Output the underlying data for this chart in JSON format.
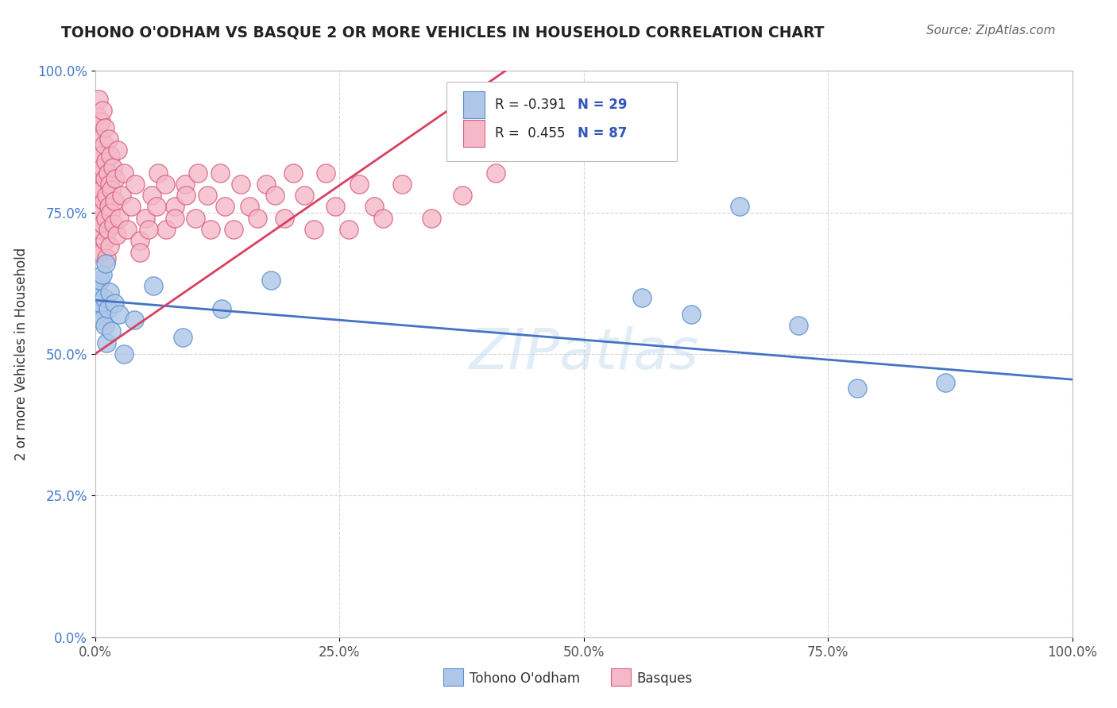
{
  "title": "TOHONO O'ODHAM VS BASQUE 2 OR MORE VEHICLES IN HOUSEHOLD CORRELATION CHART",
  "source": "Source: ZipAtlas.com",
  "ylabel": "2 or more Vehicles in Household",
  "xlabel": "",
  "xlim": [
    0.0,
    1.0
  ],
  "ylim": [
    0.0,
    1.0
  ],
  "xticks": [
    0.0,
    0.25,
    0.5,
    0.75,
    1.0
  ],
  "yticks": [
    0.0,
    0.25,
    0.5,
    0.75,
    1.0
  ],
  "xtick_labels": [
    "0.0%",
    "25.0%",
    "50.0%",
    "75.0%",
    "100.0%"
  ],
  "ytick_labels": [
    "0.0%",
    "25.0%",
    "50.0%",
    "75.0%",
    "100.0%"
  ],
  "blue_fill": "#AEC6E8",
  "blue_edge": "#5B8FCC",
  "pink_fill": "#F4B8C8",
  "pink_edge": "#D96080",
  "blue_line": "#4472C4",
  "pink_line": "#D94060",
  "legend_R1": "R = -0.391",
  "legend_N1": "N = 29",
  "legend_R2": "R =  0.455",
  "legend_N2": "N = 87",
  "label1": "Tohono O'odham",
  "label2": "Basques",
  "watermark": "ZIPatlas",
  "tohono_x": [
    0.001,
    0.002,
    0.003,
    0.004,
    0.005,
    0.006,
    0.007,
    0.008,
    0.009,
    0.01,
    0.011,
    0.012,
    0.013,
    0.015,
    0.017,
    0.02,
    0.025,
    0.03,
    0.04,
    0.06,
    0.09,
    0.13,
    0.18,
    0.56,
    0.61,
    0.66,
    0.72,
    0.78,
    0.87
  ],
  "tohono_y": [
    0.62,
    0.58,
    0.61,
    0.57,
    0.63,
    0.59,
    0.56,
    0.64,
    0.6,
    0.55,
    0.66,
    0.52,
    0.58,
    0.61,
    0.54,
    0.59,
    0.57,
    0.5,
    0.56,
    0.62,
    0.53,
    0.58,
    0.63,
    0.6,
    0.57,
    0.76,
    0.55,
    0.44,
    0.45
  ],
  "basque_x": [
    0.001,
    0.002,
    0.002,
    0.003,
    0.003,
    0.004,
    0.004,
    0.005,
    0.005,
    0.005,
    0.006,
    0.006,
    0.006,
    0.007,
    0.007,
    0.008,
    0.008,
    0.008,
    0.009,
    0.009,
    0.01,
    0.01,
    0.01,
    0.011,
    0.011,
    0.012,
    0.012,
    0.013,
    0.013,
    0.014,
    0.014,
    0.015,
    0.015,
    0.016,
    0.016,
    0.017,
    0.018,
    0.019,
    0.02,
    0.021,
    0.022,
    0.023,
    0.025,
    0.027,
    0.03,
    0.033,
    0.037,
    0.041,
    0.046,
    0.052,
    0.058,
    0.065,
    0.073,
    0.082,
    0.092,
    0.103,
    0.115,
    0.128,
    0.142,
    0.158,
    0.175,
    0.194,
    0.214,
    0.236,
    0.26,
    0.286,
    0.314,
    0.344,
    0.376,
    0.41,
    0.046,
    0.055,
    0.063,
    0.072,
    0.082,
    0.093,
    0.105,
    0.118,
    0.133,
    0.149,
    0.166,
    0.184,
    0.203,
    0.224,
    0.246,
    0.27,
    0.295
  ],
  "basque_y": [
    0.68,
    0.92,
    0.72,
    0.86,
    0.76,
    0.8,
    0.95,
    0.88,
    0.72,
    0.82,
    0.91,
    0.75,
    0.85,
    0.79,
    0.68,
    0.83,
    0.73,
    0.93,
    0.77,
    0.87,
    0.81,
    0.7,
    0.9,
    0.74,
    0.84,
    0.78,
    0.67,
    0.82,
    0.72,
    0.88,
    0.76,
    0.8,
    0.69,
    0.85,
    0.75,
    0.79,
    0.83,
    0.73,
    0.77,
    0.81,
    0.71,
    0.86,
    0.74,
    0.78,
    0.82,
    0.72,
    0.76,
    0.8,
    0.7,
    0.74,
    0.78,
    0.82,
    0.72,
    0.76,
    0.8,
    0.74,
    0.78,
    0.82,
    0.72,
    0.76,
    0.8,
    0.74,
    0.78,
    0.82,
    0.72,
    0.76,
    0.8,
    0.74,
    0.78,
    0.82,
    0.68,
    0.72,
    0.76,
    0.8,
    0.74,
    0.78,
    0.82,
    0.72,
    0.76,
    0.8,
    0.74,
    0.78,
    0.82,
    0.72,
    0.76,
    0.8,
    0.74
  ],
  "blue_line_x0": 0.0,
  "blue_line_y0": 0.595,
  "blue_line_x1": 1.0,
  "blue_line_y1": 0.455,
  "pink_line_x0": 0.0,
  "pink_line_y0": 0.5,
  "pink_line_x1": 0.42,
  "pink_line_y1": 1.0
}
